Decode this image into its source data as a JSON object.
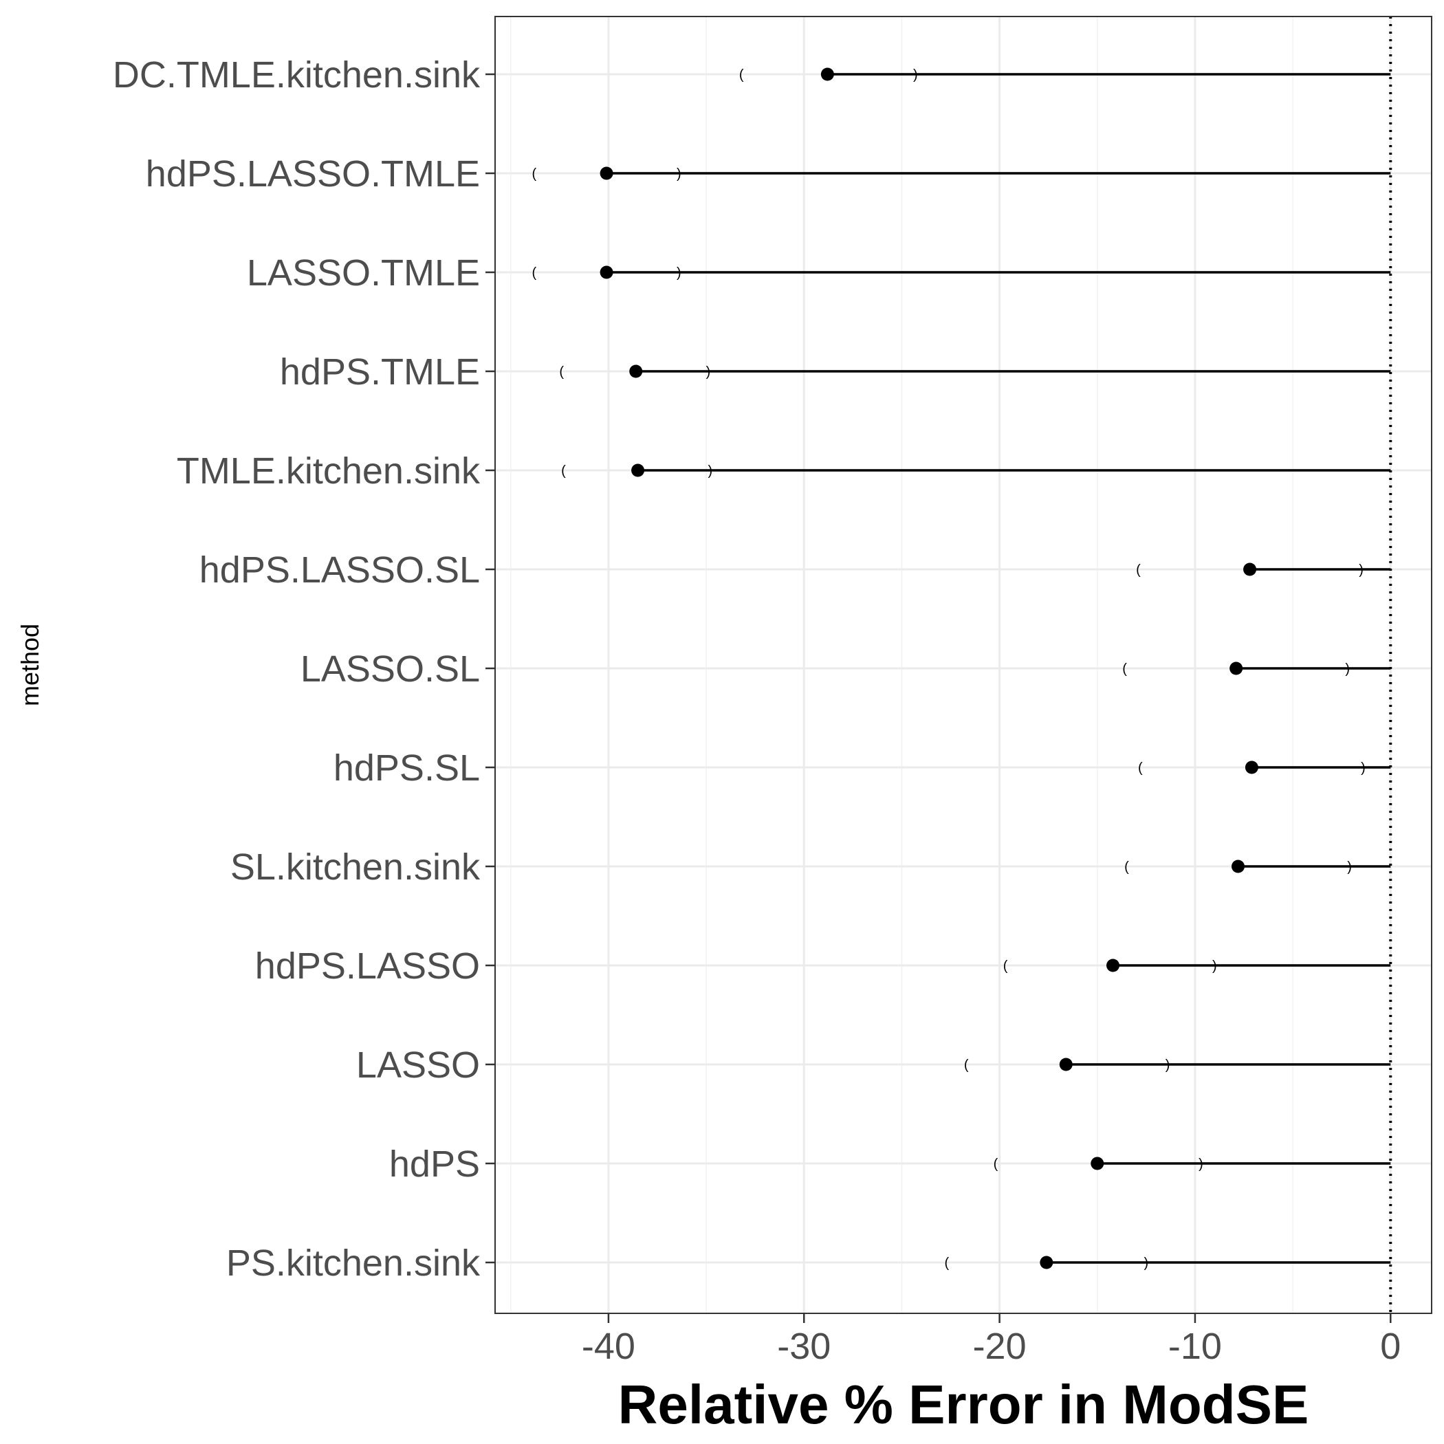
{
  "chart_data": {
    "type": "dot-and-interval",
    "xlabel": "Relative % Error in ModSE",
    "ylabel": "method",
    "xlim": [
      -45.8,
      2.1
    ],
    "x_ticks": [
      -40,
      -30,
      -20,
      -10,
      0
    ],
    "x_tick_labels": [
      "-40",
      "-30",
      "-20",
      "-10",
      "0"
    ],
    "reference_line": 0,
    "grid": true,
    "categories": [
      "DC.TMLE.kitchen.sink",
      "hdPS.LASSO.TMLE",
      "LASSO.TMLE",
      "hdPS.TMLE",
      "TMLE.kitchen.sink",
      "hdPS.LASSO.SL",
      "LASSO.SL",
      "hdPS.SL",
      "SL.kitchen.sink",
      "hdPS.LASSO",
      "LASSO",
      "hdPS",
      "PS.kitchen.sink"
    ],
    "values": [
      -28.8,
      -40.1,
      -40.1,
      -38.6,
      -38.5,
      -7.2,
      -7.9,
      -7.1,
      -7.8,
      -14.2,
      -16.6,
      -15.0,
      -17.6
    ],
    "ci_lower": [
      -33.2,
      -43.8,
      -43.8,
      -42.4,
      -42.3,
      -12.9,
      -13.6,
      -12.8,
      -13.5,
      -19.7,
      -21.7,
      -20.2,
      -22.7
    ],
    "ci_upper": [
      -24.3,
      -36.4,
      -36.4,
      -34.9,
      -34.8,
      -1.5,
      -2.2,
      -1.4,
      -2.1,
      -9.0,
      -11.4,
      -9.7,
      -12.5
    ],
    "ci_lower_mark": "(",
    "ci_upper_mark": ")"
  }
}
